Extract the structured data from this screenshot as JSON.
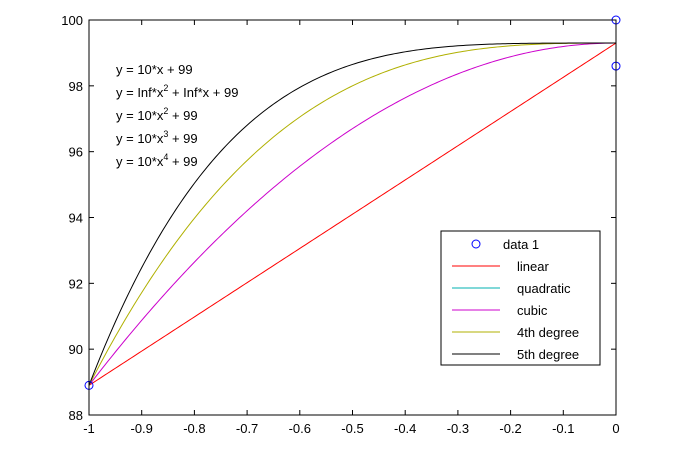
{
  "chart_data": {
    "type": "line",
    "title": "",
    "xlabel": "",
    "ylabel": "",
    "xlim": [
      -1,
      0
    ],
    "ylim": [
      88,
      100
    ],
    "xticks": [
      -1,
      -0.9,
      -0.8,
      -0.7,
      -0.6,
      -0.5,
      -0.4,
      -0.3,
      -0.2,
      -0.1,
      0
    ],
    "xtick_labels": [
      "-1",
      "-0.9",
      "-0.8",
      "-0.7",
      "-0.6",
      "-0.5",
      "-0.4",
      "-0.3",
      "-0.2",
      "-0.1",
      "0"
    ],
    "yticks": [
      88,
      90,
      92,
      94,
      96,
      98,
      100
    ],
    "ytick_labels": [
      "88",
      "90",
      "92",
      "94",
      "96",
      "98",
      "100"
    ],
    "grid": false,
    "legend_position": "lower-right",
    "data_points": {
      "name": "data 1",
      "color": "#0000ff",
      "x": [
        -1,
        0,
        0
      ],
      "y": [
        88.9,
        100,
        98.6
      ]
    },
    "series": [
      {
        "name": "linear",
        "color": "#ff0000",
        "formula": "linear",
        "x": [
          -1,
          -0.9,
          -0.8,
          -0.7,
          -0.6,
          -0.5,
          -0.4,
          -0.3,
          -0.2,
          -0.1,
          0
        ],
        "y": [
          88.9,
          89.94,
          90.98,
          92.02,
          93.06,
          94.1,
          95.14,
          96.18,
          97.22,
          98.26,
          99.3
        ]
      },
      {
        "name": "quadratic",
        "color": "#00b0b0",
        "formula": "none",
        "x": [],
        "y": []
      },
      {
        "name": "cubic",
        "color": "#cc00cc",
        "formula": "quadratic",
        "x": [
          -1,
          -0.9,
          -0.8,
          -0.7,
          -0.6,
          -0.5,
          -0.4,
          -0.3,
          -0.2,
          -0.1,
          0
        ],
        "y": [
          88.9,
          91.08,
          93.06,
          94.86,
          96.06,
          97.1,
          97.9,
          98.5,
          98.9,
          99.2,
          99.3
        ]
      },
      {
        "name": "4th degree",
        "color": "#b0b000",
        "formula": "cubic",
        "x": [
          -1,
          -0.9,
          -0.8,
          -0.7,
          -0.6,
          -0.5,
          -0.4,
          -0.3,
          -0.2,
          -0.1,
          0
        ],
        "y": [
          88.9,
          91.72,
          93.91,
          95.62,
          96.86,
          97.78,
          98.46,
          98.88,
          99.14,
          99.27,
          99.3
        ]
      },
      {
        "name": "5th degree",
        "color": "#000000",
        "formula": "quartic",
        "x": [
          -1,
          -0.9,
          -0.8,
          -0.7,
          -0.6,
          -0.5,
          -0.4,
          -0.3,
          -0.2,
          -0.1,
          0
        ],
        "y": [
          88.9,
          92.48,
          95.03,
          96.76,
          97.89,
          98.6,
          99.0,
          99.2,
          99.28,
          99.3,
          99.3
        ]
      }
    ],
    "annotations": [
      {
        "base": "y = 10*x + 99",
        "sup": "",
        "rest": ""
      },
      {
        "base": "y = Inf*x",
        "sup": "2",
        "rest": " + Inf*x + 99"
      },
      {
        "base": "y = 10*x",
        "sup": "2",
        "rest": " + 99"
      },
      {
        "base": "y = 10*x",
        "sup": "3",
        "rest": " + 99"
      },
      {
        "base": "y = 10*x",
        "sup": "4",
        "rest": " + 99"
      }
    ]
  }
}
